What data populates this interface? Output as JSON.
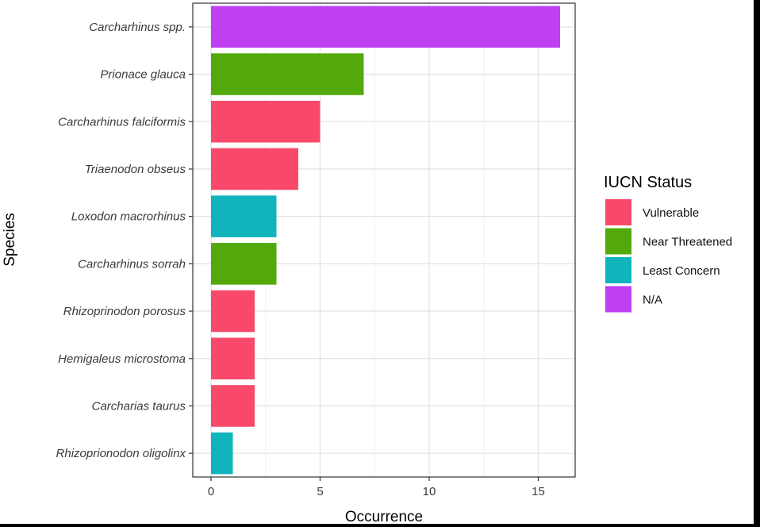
{
  "chart_data": {
    "type": "bar",
    "orientation": "horizontal",
    "xlabel": "Occurrence",
    "ylabel": "Species",
    "xlim": [
      0,
      16
    ],
    "x_ticks": [
      0,
      5,
      10,
      15
    ],
    "grid": true,
    "categories": [
      "Carcharhinus spp.",
      "Prionace glauca",
      "Carcharhinus falciformis",
      "Triaenodon obseus",
      "Loxodon macrorhinus",
      "Carcharhinus sorrah",
      "Rhizoprinodon porosus",
      "Hemigaleus microstoma",
      "Carcharias taurus",
      "Rhizoprionodon oligolinx"
    ],
    "values": [
      16,
      7,
      5,
      4,
      3,
      3,
      2,
      2,
      2,
      1
    ],
    "status": [
      "N/A",
      "Near Threatened",
      "Vulnerable",
      "Vulnerable",
      "Least Concern",
      "Near Threatened",
      "Vulnerable",
      "Vulnerable",
      "Vulnerable",
      "Least Concern"
    ],
    "legend": {
      "title": "IUCN Status",
      "position": "right",
      "entries": [
        {
          "label": "Vulnerable",
          "color": "#F8496B"
        },
        {
          "label": "Near Threatened",
          "color": "#53A90B"
        },
        {
          "label": "Least Concern",
          "color": "#10B4BD"
        },
        {
          "label": "N/A",
          "color": "#BF3FF2"
        }
      ]
    }
  }
}
